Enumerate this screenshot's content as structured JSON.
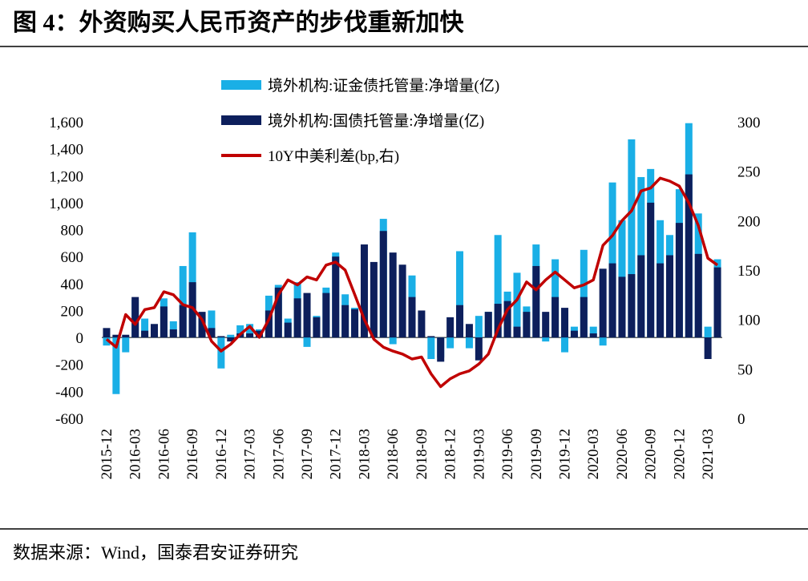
{
  "title": "图 4：外资购买人民币资产的步伐重新加快",
  "source": "数据来源：Wind，国泰君安证券研究",
  "chart_data": {
    "type": "bar",
    "categories": [
      "2015-12",
      null,
      null,
      "2016-03",
      null,
      null,
      "2016-06",
      null,
      null,
      "2016-09",
      null,
      null,
      "2016-12",
      null,
      null,
      "2017-03",
      null,
      null,
      "2017-06",
      null,
      null,
      "2017-09",
      null,
      null,
      "2017-12",
      null,
      null,
      "2018-03",
      null,
      null,
      "2018-06",
      null,
      null,
      "2018-09",
      null,
      null,
      "2018-12",
      null,
      null,
      "2019-03",
      null,
      null,
      "2019-06",
      null,
      null,
      "2019-09",
      null,
      null,
      "2019-12",
      null,
      null,
      "2020-03",
      null,
      null,
      "2020-06",
      null,
      null,
      "2020-09",
      null,
      null,
      "2020-12",
      null,
      null,
      "2021-03",
      null
    ],
    "series": [
      {
        "name": "境外机构:证金债托管量:净增量(亿)",
        "color": "#1aafe6",
        "values": [
          -60,
          -420,
          -110,
          280,
          140,
          80,
          290,
          120,
          530,
          780,
          170,
          200,
          -230,
          20,
          90,
          100,
          60,
          310,
          390,
          140,
          410,
          -70,
          160,
          370,
          630,
          320,
          220,
          0,
          0,
          880,
          -50,
          0,
          460,
          0,
          -160,
          -150,
          -80,
          640,
          -80,
          160,
          190,
          760,
          340,
          480,
          230,
          690,
          -30,
          580,
          -110,
          80,
          650,
          80,
          -60,
          1150,
          870,
          1470,
          1190,
          1250,
          870,
          760,
          1100,
          1590,
          920,
          80,
          580
        ]
      },
      {
        "name": "境外机构:国债托管量:净增量(亿)",
        "color": "#0d1f5c",
        "values": [
          70,
          20,
          20,
          300,
          50,
          100,
          230,
          60,
          240,
          410,
          190,
          70,
          10,
          -30,
          30,
          30,
          50,
          200,
          370,
          110,
          290,
          330,
          150,
          330,
          600,
          240,
          210,
          690,
          560,
          790,
          630,
          540,
          300,
          200,
          10,
          -180,
          150,
          240,
          100,
          -170,
          190,
          250,
          270,
          80,
          190,
          530,
          190,
          300,
          220,
          50,
          300,
          30,
          510,
          550,
          450,
          470,
          610,
          1000,
          550,
          610,
          850,
          1210,
          620,
          -160,
          520
        ]
      },
      {
        "name": "10Y中美利差(bp,右)",
        "color": "#c00000",
        "type": "line",
        "axis": "y2",
        "values": [
          80,
          72,
          105,
          95,
          110,
          112,
          128,
          125,
          115,
          112,
          100,
          78,
          68,
          75,
          85,
          93,
          82,
          100,
          125,
          140,
          135,
          143,
          140,
          155,
          158,
          150,
          125,
          100,
          80,
          72,
          68,
          65,
          60,
          62,
          45,
          32,
          40,
          45,
          48,
          55,
          65,
          90,
          110,
          120,
          138,
          130,
          140,
          148,
          140,
          132,
          135,
          140,
          175,
          185,
          200,
          210,
          230,
          233,
          243,
          240,
          235,
          218,
          195,
          162,
          155
        ]
      }
    ],
    "ylim": [
      -600,
      1600
    ],
    "yticks": [
      -600,
      -400,
      -200,
      0,
      {
        "value": 200,
        "label": "200"
      },
      400,
      600,
      800,
      {
        "value": 1000,
        "label": "1,000"
      },
      {
        "value": 1200,
        "label": "1,200"
      },
      {
        "value": 1400,
        "label": "1,400"
      },
      {
        "value": 1600,
        "label": "1,600"
      }
    ],
    "y2lim": [
      0,
      300
    ],
    "y2ticks": [
      0,
      50,
      100,
      150,
      200,
      250,
      300
    ],
    "legend": "upper left"
  }
}
